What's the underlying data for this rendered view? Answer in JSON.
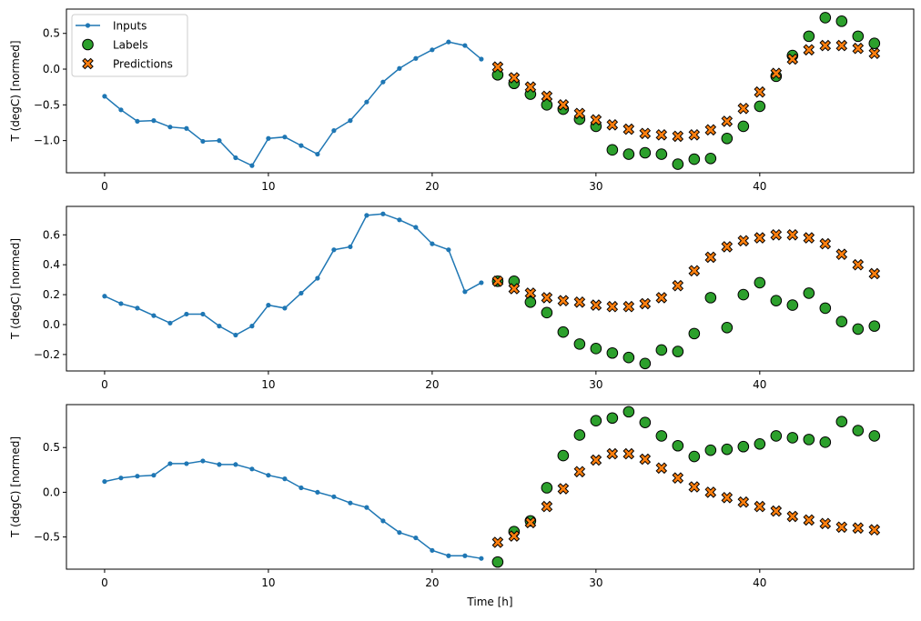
{
  "chart_data": [
    {
      "type": "line",
      "ylabel": "T (degC) [normed]",
      "xlabel": "",
      "xlim": [
        -2.33,
        49.4
      ],
      "ylim": [
        -1.45,
        0.84
      ],
      "xticks": [
        "0",
        "10",
        "20",
        "30",
        "40"
      ],
      "yticks": [
        "-1.0",
        "-0.5",
        "0.0",
        "0.5"
      ],
      "legend": {
        "position": "top-left",
        "entries": [
          "Inputs",
          "Labels",
          "Predictions"
        ]
      },
      "series": [
        {
          "name": "Inputs",
          "marker": "dot-line",
          "x_start": 0,
          "values": [
            -0.38,
            -0.57,
            -0.73,
            -0.72,
            -0.81,
            -0.83,
            -1.01,
            -1.0,
            -1.24,
            -1.35,
            -0.97,
            -0.95,
            -1.07,
            -1.19,
            -0.86,
            -0.72,
            -0.46,
            -0.18,
            0.01,
            0.15,
            0.27,
            0.38,
            0.33,
            0.14
          ]
        },
        {
          "name": "Labels",
          "marker": "circle",
          "x_start": 24,
          "values": [
            -0.08,
            -0.2,
            -0.35,
            -0.5,
            -0.56,
            -0.7,
            -0.8,
            -1.13,
            -1.19,
            -1.17,
            -1.19,
            -1.33,
            -1.26,
            -1.25,
            -0.97,
            -0.8,
            -0.52,
            -0.1,
            0.19,
            0.46,
            0.72,
            0.67,
            0.46,
            0.36
          ]
        },
        {
          "name": "Predictions",
          "marker": "x",
          "x_start": 24,
          "values": [
            0.03,
            -0.12,
            -0.25,
            -0.38,
            -0.5,
            -0.62,
            -0.71,
            -0.78,
            -0.84,
            -0.9,
            -0.92,
            -0.94,
            -0.92,
            -0.85,
            -0.73,
            -0.55,
            -0.32,
            -0.06,
            0.14,
            0.27,
            0.33,
            0.33,
            0.29,
            0.22
          ]
        }
      ]
    },
    {
      "type": "line",
      "ylabel": "T (degC) [normed]",
      "xlabel": "",
      "xlim": [
        -2.33,
        49.4
      ],
      "ylim": [
        -0.31,
        0.79
      ],
      "xticks": [
        "0",
        "10",
        "20",
        "30",
        "40"
      ],
      "yticks": [
        "-0.2",
        "0.0",
        "0.2",
        "0.4",
        "0.6"
      ],
      "series": [
        {
          "name": "Inputs",
          "marker": "dot-line",
          "x_start": 0,
          "values": [
            0.19,
            0.14,
            0.11,
            0.06,
            0.01,
            0.07,
            0.07,
            -0.01,
            -0.07,
            -0.01,
            0.13,
            0.11,
            0.21,
            0.31,
            0.5,
            0.52,
            0.73,
            0.74,
            0.7,
            0.65,
            0.54,
            0.5,
            0.22,
            0.28
          ]
        },
        {
          "name": "Labels",
          "marker": "circle",
          "x_start": 24,
          "values": [
            0.29,
            0.29,
            0.15,
            0.08,
            -0.05,
            -0.13,
            -0.16,
            -0.19,
            -0.22,
            -0.26,
            -0.17,
            -0.18,
            -0.06,
            0.18,
            -0.02,
            0.2,
            0.28,
            0.16,
            0.13,
            0.21,
            0.11,
            0.02,
            -0.03,
            -0.01
          ]
        },
        {
          "name": "Predictions",
          "marker": "x",
          "x_start": 24,
          "values": [
            0.29,
            0.24,
            0.21,
            0.18,
            0.16,
            0.15,
            0.13,
            0.12,
            0.12,
            0.14,
            0.18,
            0.26,
            0.36,
            0.45,
            0.52,
            0.56,
            0.58,
            0.6,
            0.6,
            0.58,
            0.54,
            0.47,
            0.4,
            0.34
          ]
        }
      ]
    },
    {
      "type": "line",
      "ylabel": "T (degC) [normed]",
      "xlabel": "Time [h]",
      "xlim": [
        -2.33,
        49.4
      ],
      "ylim": [
        -0.86,
        0.98
      ],
      "xticks": [
        "0",
        "10",
        "20",
        "30",
        "40"
      ],
      "yticks": [
        "-0.5",
        "0.0",
        "0.5"
      ],
      "series": [
        {
          "name": "Inputs",
          "marker": "dot-line",
          "x_start": 0,
          "values": [
            0.12,
            0.16,
            0.18,
            0.19,
            0.32,
            0.32,
            0.35,
            0.31,
            0.31,
            0.26,
            0.19,
            0.15,
            0.05,
            0.0,
            -0.05,
            -0.12,
            -0.17,
            -0.32,
            -0.45,
            -0.51,
            -0.65,
            -0.71,
            -0.71,
            -0.74
          ]
        },
        {
          "name": "Labels",
          "marker": "circle",
          "x_start": 24,
          "values": [
            -0.78,
            -0.44,
            -0.32,
            0.05,
            0.41,
            0.64,
            0.8,
            0.83,
            0.9,
            0.78,
            0.63,
            0.52,
            0.4,
            0.47,
            0.48,
            0.51,
            0.54,
            0.63,
            0.61,
            0.59,
            0.56,
            0.79,
            0.69,
            0.63
          ]
        },
        {
          "name": "Predictions",
          "marker": "x",
          "x_start": 24,
          "values": [
            -0.56,
            -0.49,
            -0.34,
            -0.16,
            0.04,
            0.23,
            0.36,
            0.43,
            0.43,
            0.37,
            0.27,
            0.16,
            0.06,
            0.0,
            -0.06,
            -0.11,
            -0.16,
            -0.21,
            -0.27,
            -0.31,
            -0.35,
            -0.39,
            -0.4,
            -0.42
          ]
        }
      ]
    }
  ],
  "colors": {
    "inputs": "#1f77b4",
    "labels": "#2ca02c",
    "predictions": "#ff7f0e",
    "edge": "#000000"
  }
}
